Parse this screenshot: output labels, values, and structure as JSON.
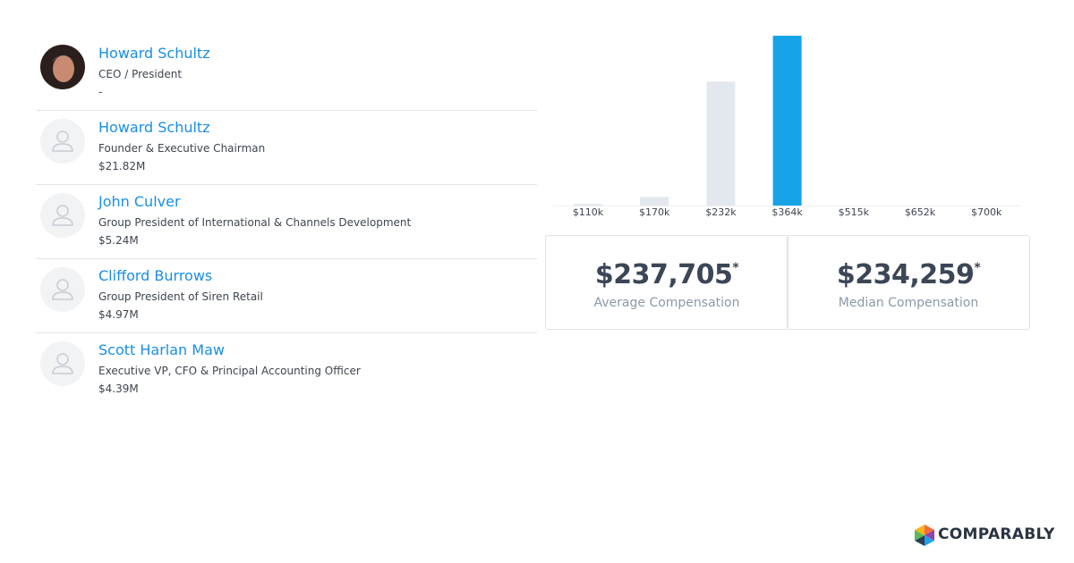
{
  "people": [
    {
      "name": "Howard Schultz",
      "role": "CEO / President",
      "compensation": "-"
    },
    {
      "name": "Howard Schultz",
      "role": "Founder & Executive Chairman",
      "compensation": "$21.82M"
    },
    {
      "name": "John Culver",
      "role": "Group President of International & Channels Development",
      "compensation": "$5.24M"
    },
    {
      "name": "Clifford Burrows",
      "role": "Group President of Siren Retail",
      "compensation": "$4.97M"
    },
    {
      "name": "Scott Harlan Maw",
      "role": "Executive VP, CFO & Principal Accounting Officer",
      "compensation": "$4.39M"
    }
  ],
  "chart_data": {
    "type": "bar",
    "categories": [
      "$110k",
      "$170k",
      "$232k",
      "$364k",
      "$515k",
      "$652k",
      "$700k"
    ],
    "values": [
      1,
      5,
      73,
      100,
      0,
      0,
      0
    ],
    "colors": [
      "#e3e8ee",
      "#e3e8ee",
      "#e3e8ee",
      "#17a3e8",
      "#e3e8ee",
      "#e3e8ee",
      "#e3e8ee"
    ]
  },
  "stats": [
    {
      "value": "$237,705",
      "mark": "*",
      "label": "Average Compensation"
    },
    {
      "value": "$234,259",
      "mark": "*",
      "label": "Median Compensation"
    }
  ],
  "brand": "COMPARABLY"
}
